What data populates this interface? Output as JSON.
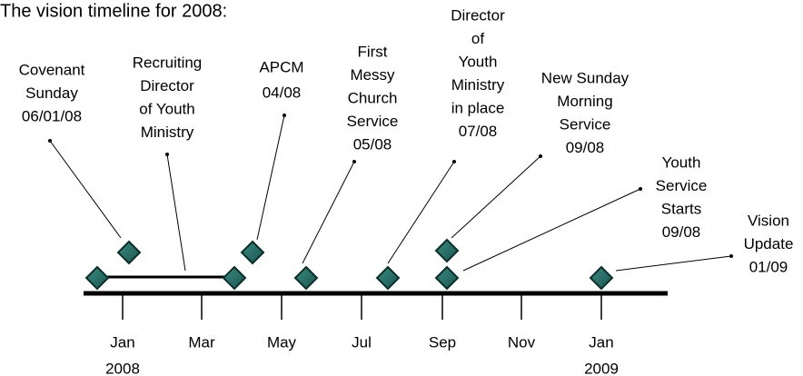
{
  "title": "The vision timeline for 2008:",
  "axis": [
    {
      "month": "Jan",
      "year": "2008"
    },
    {
      "month": "Mar"
    },
    {
      "month": "May"
    },
    {
      "month": "Jul"
    },
    {
      "month": "Sep"
    },
    {
      "month": "Nov"
    },
    {
      "month": "Jan",
      "year": "2009"
    }
  ],
  "events": [
    {
      "label": [
        "Covenant",
        "Sunday",
        "06/01/08"
      ]
    },
    {
      "label": [
        "Recruiting",
        "Director",
        "of Youth",
        "Ministry"
      ]
    },
    {
      "label": [
        "APCM",
        "04/08"
      ]
    },
    {
      "label": [
        "First",
        "Messy",
        "Church",
        "Service",
        "05/08"
      ]
    },
    {
      "label": [
        "Director",
        "of",
        "Youth",
        "Ministry",
        "in place",
        "07/08"
      ]
    },
    {
      "label": [
        "New Sunday",
        "Morning",
        "Service",
        "09/08"
      ]
    },
    {
      "label": [
        "Youth",
        "Service",
        "Starts",
        "09/08"
      ]
    },
    {
      "label": [
        "Vision",
        "Update",
        "01/09"
      ]
    }
  ]
}
